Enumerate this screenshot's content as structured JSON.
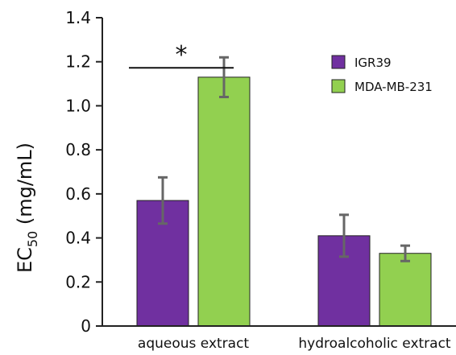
{
  "chart_data": {
    "type": "bar",
    "categories": [
      "aqueous extract",
      "hydroalcoholic extract"
    ],
    "series": [
      {
        "name": "IGR39",
        "values": [
          0.57,
          0.41
        ],
        "errors": [
          0.105,
          0.095
        ],
        "color": "#7030A0"
      },
      {
        "name": "MDA-MB-231",
        "values": [
          1.13,
          0.33
        ],
        "errors": [
          0.09,
          0.035
        ],
        "color": "#92D050"
      }
    ],
    "ylabel": {
      "main": "EC",
      "subscript": "50",
      "unit": " (mg/mL)"
    },
    "ylim": [
      0,
      1.4
    ],
    "yticks": [
      "0",
      "0.2",
      "0.4",
      "0.6",
      "0.8",
      "1.0",
      "1.2",
      "1.4"
    ],
    "legend_position": "top-right",
    "grid": false,
    "annotations": [
      {
        "type": "significance",
        "label": "*",
        "category": "aqueous extract",
        "y": 1.22
      }
    ],
    "error_bar_color": "#666666",
    "bar_edge_color": "#222222",
    "axis_color": "#222222"
  }
}
